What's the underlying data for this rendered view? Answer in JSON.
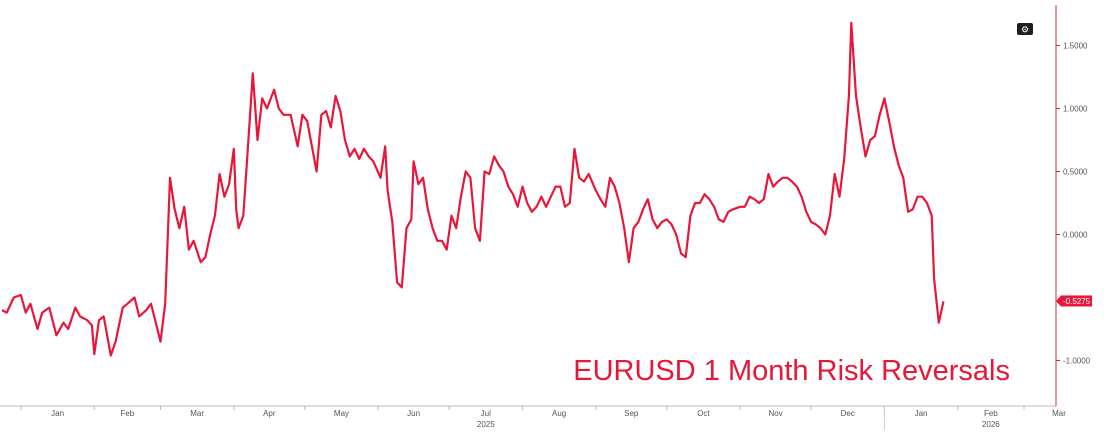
{
  "chart_data": {
    "type": "line",
    "title": "EURUSD 1 Month Risk Reversals",
    "xlabel": "",
    "ylabel": "",
    "x_range": [
      "2024-12-24",
      "2026-03-12"
    ],
    "ylim": [
      -1.25,
      1.75
    ],
    "y_ticks": [
      {
        "value": 1.5,
        "label": "1.5000"
      },
      {
        "value": 1.0,
        "label": "1.0000"
      },
      {
        "value": 0.5,
        "label": "0.5000"
      },
      {
        "value": 0.0,
        "label": "0.0000"
      },
      {
        "value": -1.0,
        "label": "-1.0000"
      }
    ],
    "x_ticks": [
      {
        "date": "2025-01-01",
        "label": "Jan"
      },
      {
        "date": "2025-02-01",
        "label": "Feb"
      },
      {
        "date": "2025-03-01",
        "label": "Mar"
      },
      {
        "date": "2025-04-01",
        "label": "Apr"
      },
      {
        "date": "2025-05-01",
        "label": "May"
      },
      {
        "date": "2025-06-01",
        "label": "Jun"
      },
      {
        "date": "2025-07-01",
        "label": "Jul"
      },
      {
        "date": "2025-08-01",
        "label": "Aug"
      },
      {
        "date": "2025-09-01",
        "label": "Sep"
      },
      {
        "date": "2025-10-01",
        "label": "Oct"
      },
      {
        "date": "2025-11-01",
        "label": "Nov"
      },
      {
        "date": "2025-12-01",
        "label": "Dec"
      },
      {
        "date": "2026-01-01",
        "label": "Jan"
      },
      {
        "date": "2026-02-01",
        "label": "Feb"
      },
      {
        "date": "2026-03-01",
        "label": "Mar"
      }
    ],
    "year_labels": [
      {
        "date": "2025-07-01",
        "label": "2025"
      },
      {
        "date": "2026-02-01",
        "label": "2026"
      }
    ],
    "grid": false,
    "legend": "none",
    "last_value": {
      "value": -0.5275,
      "label": "-0.5275"
    },
    "series": [
      {
        "color": "#e8173a",
        "points": [
          [
            "2024-12-24",
            -0.6
          ],
          [
            "2024-12-26",
            -0.62
          ],
          [
            "2024-12-29",
            -0.5
          ],
          [
            "2025-01-01",
            -0.48
          ],
          [
            "2025-01-03",
            -0.62
          ],
          [
            "2025-01-05",
            -0.55
          ],
          [
            "2025-01-08",
            -0.75
          ],
          [
            "2025-01-10",
            -0.62
          ],
          [
            "2025-01-13",
            -0.58
          ],
          [
            "2025-01-16",
            -0.8
          ],
          [
            "2025-01-19",
            -0.7
          ],
          [
            "2025-01-21",
            -0.75
          ],
          [
            "2025-01-24",
            -0.58
          ],
          [
            "2025-01-26",
            -0.65
          ],
          [
            "2025-01-29",
            -0.68
          ],
          [
            "2025-01-31",
            -0.72
          ],
          [
            "2025-02-01",
            -0.95
          ],
          [
            "2025-02-03",
            -0.68
          ],
          [
            "2025-02-05",
            -0.65
          ],
          [
            "2025-02-08",
            -0.96
          ],
          [
            "2025-02-10",
            -0.85
          ],
          [
            "2025-02-13",
            -0.58
          ],
          [
            "2025-02-15",
            -0.55
          ],
          [
            "2025-02-18",
            -0.5
          ],
          [
            "2025-02-20",
            -0.65
          ],
          [
            "2025-02-23",
            -0.6
          ],
          [
            "2025-02-25",
            -0.55
          ],
          [
            "2025-02-27",
            -0.7
          ],
          [
            "2025-03-01",
            -0.85
          ],
          [
            "2025-03-03",
            -0.55
          ],
          [
            "2025-03-05",
            0.45
          ],
          [
            "2025-03-07",
            0.2
          ],
          [
            "2025-03-09",
            0.05
          ],
          [
            "2025-03-11",
            0.22
          ],
          [
            "2025-03-13",
            -0.12
          ],
          [
            "2025-03-15",
            -0.05
          ],
          [
            "2025-03-18",
            -0.22
          ],
          [
            "2025-03-20",
            -0.18
          ],
          [
            "2025-03-22",
            0.0
          ],
          [
            "2025-03-24",
            0.15
          ],
          [
            "2025-03-26",
            0.48
          ],
          [
            "2025-03-28",
            0.3
          ],
          [
            "2025-03-30",
            0.4
          ],
          [
            "2025-04-01",
            0.68
          ],
          [
            "2025-04-02",
            0.2
          ],
          [
            "2025-04-03",
            0.05
          ],
          [
            "2025-04-05",
            0.15
          ],
          [
            "2025-04-07",
            0.7
          ],
          [
            "2025-04-09",
            1.28
          ],
          [
            "2025-04-11",
            0.75
          ],
          [
            "2025-04-13",
            1.08
          ],
          [
            "2025-04-15",
            1.0
          ],
          [
            "2025-04-18",
            1.15
          ],
          [
            "2025-04-20",
            1.0
          ],
          [
            "2025-04-22",
            0.95
          ],
          [
            "2025-04-25",
            0.95
          ],
          [
            "2025-04-28",
            0.7
          ],
          [
            "2025-04-30",
            0.95
          ],
          [
            "2025-05-02",
            0.9
          ],
          [
            "2025-05-04",
            0.7
          ],
          [
            "2025-05-06",
            0.5
          ],
          [
            "2025-05-08",
            0.95
          ],
          [
            "2025-05-10",
            0.98
          ],
          [
            "2025-05-12",
            0.85
          ],
          [
            "2025-05-14",
            1.1
          ],
          [
            "2025-05-16",
            0.98
          ],
          [
            "2025-05-18",
            0.75
          ],
          [
            "2025-05-20",
            0.62
          ],
          [
            "2025-05-22",
            0.68
          ],
          [
            "2025-05-24",
            0.6
          ],
          [
            "2025-05-26",
            0.68
          ],
          [
            "2025-05-28",
            0.62
          ],
          [
            "2025-05-30",
            0.58
          ],
          [
            "2025-06-02",
            0.45
          ],
          [
            "2025-06-04",
            0.7
          ],
          [
            "2025-06-05",
            0.35
          ],
          [
            "2025-06-07",
            0.1
          ],
          [
            "2025-06-09",
            -0.38
          ],
          [
            "2025-06-11",
            -0.42
          ],
          [
            "2025-06-13",
            0.05
          ],
          [
            "2025-06-15",
            0.12
          ],
          [
            "2025-06-16",
            0.58
          ],
          [
            "2025-06-18",
            0.4
          ],
          [
            "2025-06-20",
            0.45
          ],
          [
            "2025-06-22",
            0.2
          ],
          [
            "2025-06-24",
            0.05
          ],
          [
            "2025-06-26",
            -0.05
          ],
          [
            "2025-06-28",
            -0.05
          ],
          [
            "2025-06-30",
            -0.12
          ],
          [
            "2025-07-02",
            0.15
          ],
          [
            "2025-07-04",
            0.05
          ],
          [
            "2025-07-06",
            0.3
          ],
          [
            "2025-07-08",
            0.5
          ],
          [
            "2025-07-10",
            0.45
          ],
          [
            "2025-07-12",
            0.05
          ],
          [
            "2025-07-14",
            -0.05
          ],
          [
            "2025-07-16",
            0.5
          ],
          [
            "2025-07-18",
            0.48
          ],
          [
            "2025-07-20",
            0.62
          ],
          [
            "2025-07-22",
            0.55
          ],
          [
            "2025-07-24",
            0.5
          ],
          [
            "2025-07-26",
            0.38
          ],
          [
            "2025-07-28",
            0.32
          ],
          [
            "2025-07-30",
            0.22
          ],
          [
            "2025-08-01",
            0.38
          ],
          [
            "2025-08-03",
            0.25
          ],
          [
            "2025-08-05",
            0.18
          ],
          [
            "2025-08-07",
            0.22
          ],
          [
            "2025-08-09",
            0.3
          ],
          [
            "2025-08-11",
            0.22
          ],
          [
            "2025-08-13",
            0.3
          ],
          [
            "2025-08-15",
            0.38
          ],
          [
            "2025-08-17",
            0.38
          ],
          [
            "2025-08-19",
            0.22
          ],
          [
            "2025-08-21",
            0.25
          ],
          [
            "2025-08-23",
            0.68
          ],
          [
            "2025-08-25",
            0.45
          ],
          [
            "2025-08-27",
            0.42
          ],
          [
            "2025-08-29",
            0.48
          ],
          [
            "2025-09-01",
            0.35
          ],
          [
            "2025-09-03",
            0.28
          ],
          [
            "2025-09-05",
            0.22
          ],
          [
            "2025-09-07",
            0.45
          ],
          [
            "2025-09-09",
            0.38
          ],
          [
            "2025-09-11",
            0.25
          ],
          [
            "2025-09-13",
            0.05
          ],
          [
            "2025-09-15",
            -0.22
          ],
          [
            "2025-09-17",
            0.05
          ],
          [
            "2025-09-19",
            0.1
          ],
          [
            "2025-09-21",
            0.2
          ],
          [
            "2025-09-23",
            0.28
          ],
          [
            "2025-09-25",
            0.12
          ],
          [
            "2025-09-27",
            0.05
          ],
          [
            "2025-09-29",
            0.1
          ],
          [
            "2025-10-01",
            0.12
          ],
          [
            "2025-10-03",
            0.08
          ],
          [
            "2025-10-05",
            0.0
          ],
          [
            "2025-10-07",
            -0.15
          ],
          [
            "2025-10-09",
            -0.18
          ],
          [
            "2025-10-11",
            0.15
          ],
          [
            "2025-10-13",
            0.25
          ],
          [
            "2025-10-15",
            0.25
          ],
          [
            "2025-10-17",
            0.32
          ],
          [
            "2025-10-19",
            0.28
          ],
          [
            "2025-10-21",
            0.22
          ],
          [
            "2025-10-23",
            0.12
          ],
          [
            "2025-10-25",
            0.1
          ],
          [
            "2025-10-27",
            0.18
          ],
          [
            "2025-10-29",
            0.2
          ],
          [
            "2025-11-01",
            0.22
          ],
          [
            "2025-11-03",
            0.22
          ],
          [
            "2025-11-05",
            0.3
          ],
          [
            "2025-11-07",
            0.28
          ],
          [
            "2025-11-09",
            0.25
          ],
          [
            "2025-11-11",
            0.28
          ],
          [
            "2025-11-13",
            0.48
          ],
          [
            "2025-11-15",
            0.38
          ],
          [
            "2025-11-17",
            0.42
          ],
          [
            "2025-11-19",
            0.45
          ],
          [
            "2025-11-21",
            0.45
          ],
          [
            "2025-11-23",
            0.42
          ],
          [
            "2025-11-25",
            0.38
          ],
          [
            "2025-11-27",
            0.3
          ],
          [
            "2025-11-29",
            0.18
          ],
          [
            "2025-12-01",
            0.1
          ],
          [
            "2025-12-03",
            0.08
          ],
          [
            "2025-12-05",
            0.05
          ],
          [
            "2025-12-07",
            0.0
          ],
          [
            "2025-12-09",
            0.15
          ],
          [
            "2025-12-11",
            0.48
          ],
          [
            "2025-12-13",
            0.3
          ],
          [
            "2025-12-15",
            0.6
          ],
          [
            "2025-12-17",
            1.1
          ],
          [
            "2025-12-18",
            1.68
          ],
          [
            "2025-12-20",
            1.1
          ],
          [
            "2025-12-22",
            0.85
          ],
          [
            "2025-12-24",
            0.62
          ],
          [
            "2025-12-26",
            0.75
          ],
          [
            "2025-12-28",
            0.78
          ],
          [
            "2025-12-30",
            0.95
          ],
          [
            "2026-01-01",
            1.08
          ],
          [
            "2026-01-03",
            0.9
          ],
          [
            "2026-01-05",
            0.7
          ],
          [
            "2026-01-07",
            0.55
          ],
          [
            "2026-01-09",
            0.45
          ],
          [
            "2026-01-11",
            0.18
          ],
          [
            "2026-01-13",
            0.2
          ],
          [
            "2026-01-15",
            0.3
          ],
          [
            "2026-01-17",
            0.3
          ],
          [
            "2026-01-19",
            0.25
          ],
          [
            "2026-01-21",
            0.15
          ],
          [
            "2026-01-22",
            -0.35
          ],
          [
            "2026-01-24",
            -0.7
          ],
          [
            "2026-01-26",
            -0.53
          ]
        ]
      }
    ]
  },
  "toolbar": {
    "gear_glyph": "⚙"
  }
}
